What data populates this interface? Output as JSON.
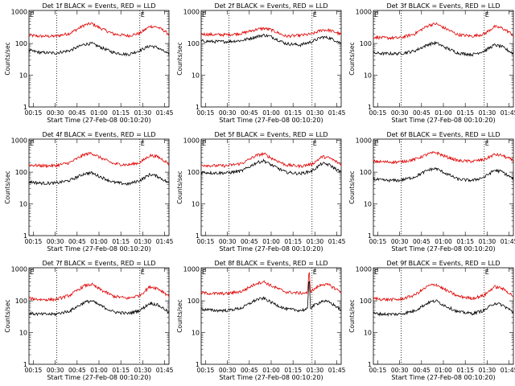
{
  "figure": {
    "xlabel": "Start Time (27-Feb-08 00:10:20)",
    "ylabel": "Counts/sec",
    "x_ticks": [
      "00:15",
      "00:30",
      "00:45",
      "01:00",
      "01:15",
      "01:30",
      "01:45"
    ],
    "x_tick_minutes": [
      15,
      30,
      45,
      60,
      75,
      90,
      105
    ],
    "y_ticks": [
      "1",
      "10",
      "100",
      "1000"
    ],
    "y_tick_values": [
      1,
      10,
      100,
      1000
    ],
    "xlim_minutes": [
      12,
      108
    ],
    "ylim": [
      1,
      1100
    ],
    "log_y": true,
    "grid": false,
    "vline_minutes": [
      31,
      88
    ],
    "vline_marker_text": "E",
    "marker_minutes": [
      12,
      88
    ],
    "series_colors": {
      "events": "#000000",
      "lld": "#e00000"
    }
  },
  "chart_data": [
    {
      "type": "line",
      "title": "Det 1f BLACK = Events, RED = LLD",
      "x_minutes": [
        12,
        20,
        30,
        40,
        50,
        55,
        60,
        70,
        80,
        88,
        95,
        100,
        105,
        108
      ],
      "series": [
        {
          "name": "BLACK",
          "values": [
            60,
            52,
            50,
            60,
            95,
            100,
            80,
            52,
            45,
            60,
            85,
            75,
            55,
            45
          ]
        },
        {
          "name": "RED",
          "values": [
            180,
            170,
            170,
            210,
            380,
            430,
            320,
            200,
            175,
            210,
            350,
            330,
            250,
            190
          ]
        }
      ]
    },
    {
      "type": "line",
      "title": "Det 2f BLACK = Events, RED = LLD",
      "x_minutes": [
        12,
        20,
        30,
        40,
        50,
        55,
        60,
        70,
        80,
        88,
        95,
        100,
        105,
        108
      ],
      "series": [
        {
          "name": "BLACK",
          "values": [
            120,
            115,
            115,
            125,
            165,
            185,
            165,
            100,
            90,
            115,
            160,
            150,
            120,
            100
          ]
        },
        {
          "name": "RED",
          "values": [
            200,
            190,
            190,
            210,
            280,
            300,
            270,
            170,
            180,
            200,
            270,
            260,
            220,
            190
          ]
        }
      ]
    },
    {
      "type": "line",
      "title": "Det 3f BLACK = Events, RED = LLD",
      "x_minutes": [
        12,
        20,
        30,
        40,
        50,
        55,
        60,
        70,
        80,
        88,
        95,
        100,
        105,
        108
      ],
      "series": [
        {
          "name": "BLACK",
          "values": [
            50,
            48,
            48,
            58,
            95,
            105,
            80,
            50,
            45,
            58,
            90,
            80,
            58,
            48
          ]
        },
        {
          "name": "RED",
          "values": [
            160,
            150,
            150,
            200,
            380,
            420,
            320,
            190,
            170,
            200,
            340,
            310,
            230,
            180
          ]
        }
      ]
    },
    {
      "type": "line",
      "title": "Det 4f BLACK = Events, RED = LLD",
      "x_minutes": [
        12,
        20,
        30,
        40,
        50,
        55,
        60,
        70,
        80,
        88,
        95,
        100,
        105,
        108
      ],
      "series": [
        {
          "name": "BLACK",
          "values": [
            50,
            45,
            45,
            55,
            90,
            95,
            75,
            48,
            42,
            55,
            85,
            75,
            55,
            45
          ]
        },
        {
          "name": "RED",
          "values": [
            170,
            160,
            160,
            200,
            360,
            400,
            300,
            185,
            170,
            200,
            340,
            310,
            230,
            180
          ]
        }
      ]
    },
    {
      "type": "line",
      "title": "Det 5f BLACK = Events, RED = LLD",
      "x_minutes": [
        12,
        20,
        30,
        40,
        50,
        55,
        60,
        70,
        80,
        88,
        95,
        100,
        105,
        108
      ],
      "series": [
        {
          "name": "BLACK",
          "values": [
            100,
            95,
            95,
            110,
            200,
            230,
            170,
            100,
            90,
            110,
            190,
            170,
            120,
            100
          ]
        },
        {
          "name": "RED",
          "values": [
            170,
            160,
            160,
            190,
            340,
            380,
            280,
            170,
            155,
            180,
            310,
            280,
            210,
            170
          ]
        }
      ]
    },
    {
      "type": "line",
      "title": "Det 6f BLACK = Events, RED = LLD",
      "x_minutes": [
        12,
        20,
        30,
        40,
        50,
        55,
        60,
        70,
        80,
        88,
        95,
        100,
        105,
        108
      ],
      "series": [
        {
          "name": "BLACK",
          "values": [
            60,
            55,
            55,
            70,
            120,
            130,
            100,
            60,
            55,
            70,
            115,
            105,
            75,
            60
          ]
        },
        {
          "name": "RED",
          "values": [
            220,
            210,
            210,
            250,
            380,
            420,
            330,
            230,
            220,
            250,
            360,
            340,
            270,
            230
          ]
        }
      ]
    },
    {
      "type": "line",
      "title": "Det 7f BLACK = Events, RED = LLD",
      "x_minutes": [
        12,
        20,
        30,
        40,
        50,
        55,
        60,
        70,
        80,
        88,
        95,
        100,
        105,
        108
      ],
      "series": [
        {
          "name": "BLACK",
          "values": [
            40,
            38,
            38,
            48,
            90,
            100,
            75,
            45,
            40,
            50,
            85,
            75,
            55,
            42
          ]
        },
        {
          "name": "RED",
          "values": [
            120,
            110,
            110,
            150,
            300,
            330,
            240,
            140,
            120,
            150,
            280,
            250,
            180,
            140
          ]
        }
      ]
    },
    {
      "type": "line",
      "title": "Det 8f BLACK = Events, RED = LLD",
      "x_minutes": [
        12,
        20,
        30,
        40,
        50,
        55,
        60,
        70,
        80,
        85,
        86,
        87,
        88,
        95,
        100,
        105,
        108
      ],
      "series": [
        {
          "name": "BLACK",
          "values": [
            55,
            50,
            50,
            60,
            110,
            120,
            90,
            55,
            50,
            55,
            700,
            60,
            65,
            100,
            90,
            65,
            50
          ]
        },
        {
          "name": "RED",
          "values": [
            180,
            170,
            170,
            200,
            360,
            400,
            300,
            190,
            175,
            180,
            1000,
            200,
            210,
            340,
            310,
            230,
            190
          ]
        }
      ]
    },
    {
      "type": "line",
      "title": "Det 9f BLACK = Events, RED = LLD",
      "x_minutes": [
        12,
        20,
        30,
        40,
        50,
        55,
        60,
        70,
        80,
        88,
        95,
        100,
        105,
        108
      ],
      "series": [
        {
          "name": "BLACK",
          "values": [
            40,
            38,
            38,
            48,
            90,
            100,
            75,
            45,
            40,
            50,
            85,
            75,
            55,
            42
          ]
        },
        {
          "name": "RED",
          "values": [
            120,
            110,
            110,
            150,
            300,
            330,
            240,
            140,
            120,
            150,
            280,
            250,
            180,
            140
          ]
        }
      ]
    }
  ]
}
